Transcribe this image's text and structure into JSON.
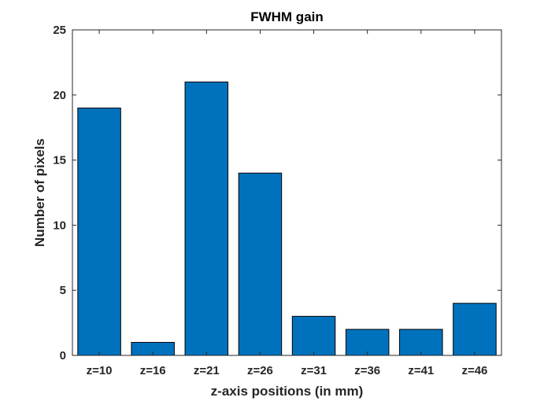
{
  "chart_data": {
    "type": "bar",
    "title": "FWHM gain",
    "xlabel": "z-axis positions (in mm)",
    "ylabel": "Number of pixels",
    "categories": [
      "z=10",
      "z=16",
      "z=21",
      "z=26",
      "z=31",
      "z=36",
      "z=41",
      "z=46"
    ],
    "values": [
      19,
      1,
      21,
      14,
      3,
      2,
      2,
      4
    ],
    "ylim": [
      0,
      25
    ],
    "yticks": [
      0,
      5,
      10,
      15,
      20,
      25
    ],
    "grid": false,
    "bar_color": "#0072BD",
    "bar_edge_color": "#000000"
  }
}
